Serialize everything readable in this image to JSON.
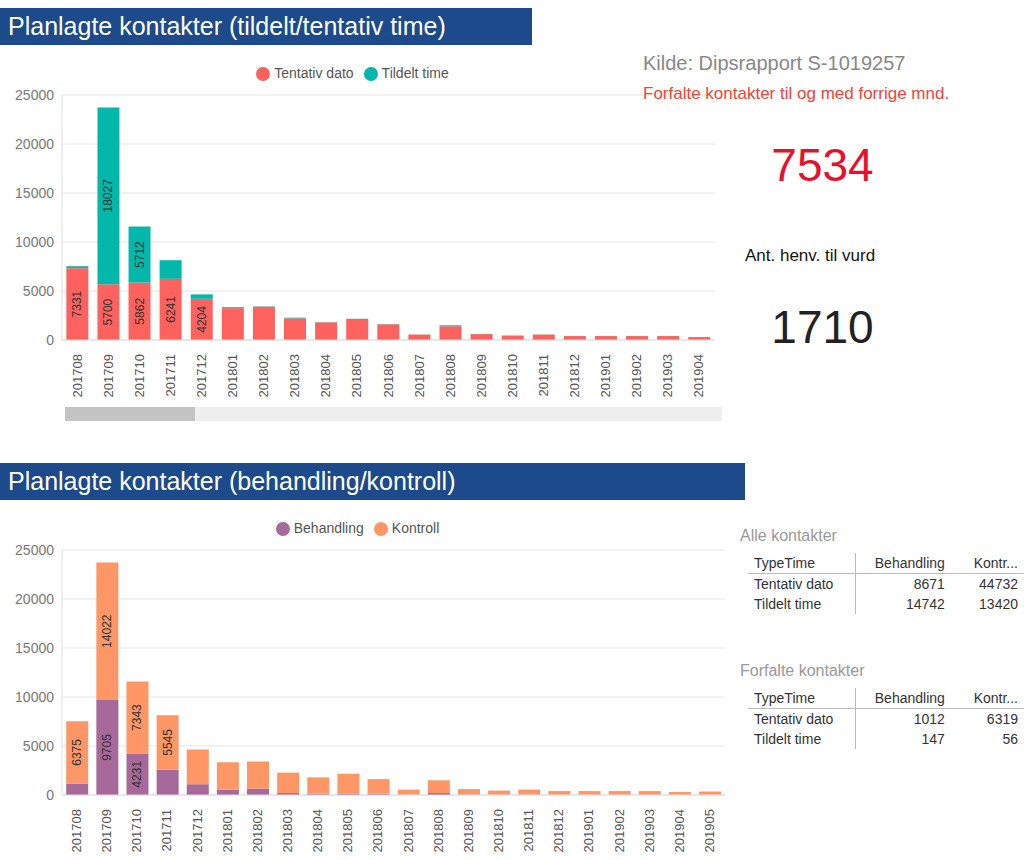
{
  "chart_data": [
    {
      "type": "bar",
      "title": "Planlagte kontakter (tildelt/tentativ time)",
      "stacked": true,
      "grid": true,
      "legend": "top",
      "data_labels": true,
      "categories": [
        "201708",
        "201709",
        "201710",
        "201711",
        "201712",
        "201801",
        "201802",
        "201803",
        "201804",
        "201805",
        "201806",
        "201807",
        "201808",
        "201809",
        "201810",
        "201811",
        "201812",
        "201901",
        "201902",
        "201903",
        "201904"
      ],
      "ylim": [
        0,
        25000
      ],
      "yticks": [
        0,
        5000,
        10000,
        15000,
        20000,
        25000
      ],
      "series": [
        {
          "name": "Tentativ dato",
          "color": "#fd625e",
          "values": [
            7331,
            5700,
            5862,
            6241,
            4204,
            3250,
            3400,
            2200,
            1800,
            2150,
            1600,
            550,
            1400,
            600,
            450,
            550,
            400,
            400,
            400,
            400,
            300
          ],
          "value_labels": [
            "7331",
            "5700",
            "5862",
            "6241",
            "4204",
            null,
            null,
            null,
            null,
            null,
            null,
            null,
            null,
            null,
            null,
            null,
            null,
            null,
            null,
            null,
            null
          ]
        },
        {
          "name": "Tildelt time",
          "color": "#01b8aa",
          "values": [
            200,
            18027,
            5712,
            1900,
            450,
            100,
            30,
            80,
            20,
            20,
            20,
            10,
            100,
            10,
            10,
            10,
            10,
            10,
            10,
            10,
            10
          ],
          "value_labels": [
            null,
            "18027",
            "5712",
            null,
            null,
            null,
            null,
            null,
            null,
            null,
            null,
            null,
            null,
            null,
            null,
            null,
            null,
            null,
            null,
            null,
            null
          ]
        }
      ]
    },
    {
      "type": "bar",
      "title": "Planlagte kontakter (behandling/kontroll)",
      "stacked": true,
      "grid": true,
      "legend": "top",
      "data_labels": true,
      "categories": [
        "201708",
        "201709",
        "201710",
        "201711",
        "201712",
        "201801",
        "201802",
        "201803",
        "201804",
        "201805",
        "201806",
        "201807",
        "201808",
        "201809",
        "201810",
        "201811",
        "201812",
        "201901",
        "201902",
        "201903",
        "201904",
        "201905"
      ],
      "ylim": [
        0,
        25000
      ],
      "yticks": [
        0,
        5000,
        10000,
        15000,
        20000,
        25000
      ],
      "series": [
        {
          "name": "Behandling",
          "color": "#a66999",
          "values": [
            1156,
            9705,
            4231,
            2596,
            1100,
            550,
            650,
            200,
            130,
            150,
            130,
            40,
            200,
            50,
            30,
            40,
            30,
            30,
            30,
            30,
            20,
            20
          ],
          "value_labels": [
            null,
            "9705",
            "4231",
            null,
            null,
            null,
            null,
            null,
            null,
            null,
            null,
            null,
            null,
            null,
            null,
            null,
            null,
            null,
            null,
            null,
            null,
            null
          ]
        },
        {
          "name": "Kontroll",
          "color": "#fe9666",
          "values": [
            6375,
            14022,
            7343,
            5545,
            3554,
            2800,
            2780,
            2080,
            1670,
            2020,
            1490,
            510,
            1300,
            550,
            420,
            510,
            370,
            370,
            370,
            370,
            280,
            330
          ],
          "value_labels": [
            "6375",
            "14022",
            "7343",
            "5545",
            null,
            null,
            null,
            null,
            null,
            null,
            null,
            null,
            null,
            null,
            null,
            null,
            null,
            null,
            null,
            null,
            null,
            null
          ]
        }
      ]
    }
  ],
  "kpis": {
    "source": "Kilde: Dipsrapport S-1019257",
    "overdue_label": "Forfalte kontakter til og med forrige mnd.",
    "overdue_value": 7534,
    "referrals_label": "Ant. henv. til vurd",
    "referrals_value": 1710
  },
  "tables": [
    {
      "title": "Alle kontakter",
      "columns": [
        "TypeTime",
        "Behandling",
        "Kontr..."
      ],
      "rows": [
        [
          "Tentativ dato",
          8671,
          44732
        ],
        [
          "Tildelt time",
          14742,
          13420
        ]
      ]
    },
    {
      "title": "Forfalte kontakter",
      "columns": [
        "TypeTime",
        "Behandling",
        "Kontr..."
      ],
      "rows": [
        [
          "Tentativ dato",
          1012,
          6319
        ],
        [
          "Tildelt time",
          147,
          56
        ]
      ]
    }
  ]
}
